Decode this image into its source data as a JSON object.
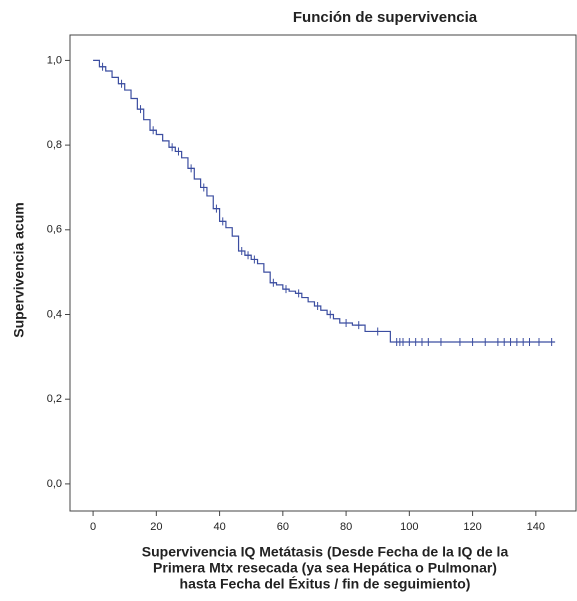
{
  "chart_data": {
    "type": "step",
    "title": "Función de supervivencia",
    "ylabel": "Supervivencia acum",
    "xlabel": [
      "Supervivencia IQ Metátasis (Desde Fecha de la IQ de la",
      "Primera Mtx resecada (ya sea Hepática o Pulmonar)",
      "hasta Fecha del Éxitus / fin de seguimiento)"
    ],
    "color": "#3b4da0",
    "x": [
      0,
      2,
      4,
      6,
      8,
      10,
      12,
      14,
      16,
      18,
      20,
      22,
      24,
      26,
      28,
      30,
      32,
      34,
      36,
      38,
      40,
      42,
      44,
      46,
      48,
      50,
      52,
      54,
      56,
      58,
      60,
      62,
      64,
      66,
      68,
      70,
      72,
      74,
      76,
      78,
      82,
      86,
      94,
      146
    ],
    "values": [
      1.0,
      0.985,
      0.975,
      0.96,
      0.945,
      0.93,
      0.91,
      0.885,
      0.86,
      0.835,
      0.825,
      0.81,
      0.795,
      0.785,
      0.77,
      0.745,
      0.72,
      0.7,
      0.68,
      0.65,
      0.62,
      0.605,
      0.585,
      0.55,
      0.54,
      0.53,
      0.52,
      0.5,
      0.475,
      0.47,
      0.46,
      0.455,
      0.45,
      0.44,
      0.43,
      0.42,
      0.41,
      0.4,
      0.39,
      0.38,
      0.375,
      0.36,
      0.335,
      0.335
    ],
    "censored": {
      "x": [
        3,
        9,
        15,
        19,
        25,
        27,
        31,
        35,
        39,
        41,
        47,
        49,
        51,
        57,
        61,
        65,
        71,
        75,
        80,
        84,
        90,
        96,
        97,
        98,
        100,
        102,
        104,
        106,
        110,
        116,
        120,
        124,
        128,
        130,
        132,
        134,
        136,
        138,
        141,
        145
      ],
      "values": [
        0.985,
        0.945,
        0.885,
        0.835,
        0.795,
        0.785,
        0.745,
        0.7,
        0.65,
        0.62,
        0.55,
        0.54,
        0.53,
        0.475,
        0.46,
        0.45,
        0.42,
        0.4,
        0.38,
        0.375,
        0.36,
        0.335,
        0.335,
        0.335,
        0.335,
        0.335,
        0.335,
        0.335,
        0.335,
        0.335,
        0.335,
        0.335,
        0.335,
        0.335,
        0.335,
        0.335,
        0.335,
        0.335,
        0.335,
        0.335
      ]
    },
    "xlim": [
      -7.3,
      152.7
    ],
    "ylim": [
      -0.064,
      1.06
    ],
    "xticks": [
      0,
      20,
      40,
      60,
      80,
      100,
      120,
      140
    ],
    "yticks": [
      {
        "value": 0,
        "label": "0,0"
      },
      {
        "value": 0.2,
        "label": "0,2"
      },
      {
        "value": 0.4,
        "label": "0,4"
      },
      {
        "value": 0.6,
        "label": "0,6"
      },
      {
        "value": 0.8,
        "label": "0,8"
      },
      {
        "value": 1,
        "label": "1,0"
      }
    ]
  }
}
